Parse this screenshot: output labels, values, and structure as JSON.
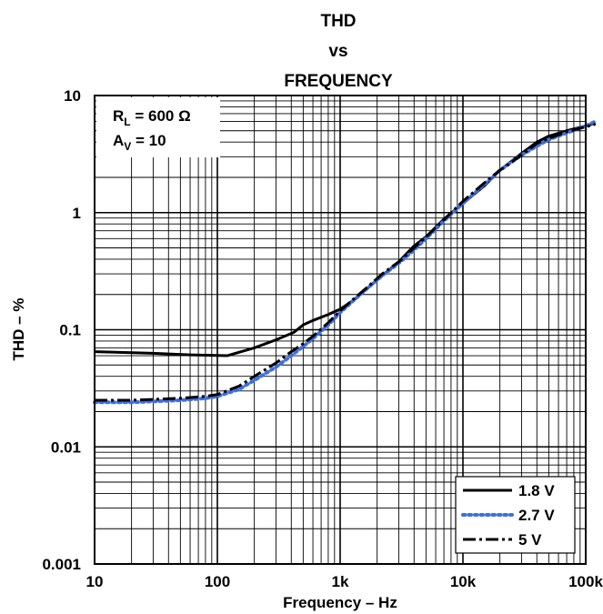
{
  "chart_data": {
    "type": "line",
    "title_lines": [
      "THD",
      "vs",
      "FREQUENCY"
    ],
    "xlabel": "Frequency – Hz",
    "ylabel": "THD – %",
    "x_scale": "log",
    "y_scale": "log",
    "xlim": [
      10,
      100000
    ],
    "ylim": [
      0.001,
      10
    ],
    "x_ticks": [
      {
        "value": 10,
        "label": "10"
      },
      {
        "value": 100,
        "label": "100"
      },
      {
        "value": 1000,
        "label": "1k"
      },
      {
        "value": 10000,
        "label": "10k"
      },
      {
        "value": 100000,
        "label": "100k"
      }
    ],
    "y_ticks": [
      {
        "value": 0.001,
        "label": "0.001"
      },
      {
        "value": 0.01,
        "label": "0.01"
      },
      {
        "value": 0.1,
        "label": "0.1"
      },
      {
        "value": 1,
        "label": "1"
      },
      {
        "value": 10,
        "label": "10"
      }
    ],
    "grid": true,
    "conditions": [
      {
        "main": "R",
        "sub": "L",
        "rest": " = 600 Ω"
      },
      {
        "main": "A",
        "sub": "V",
        "rest": " = 10"
      }
    ],
    "legend_position": "bottom-right",
    "series": [
      {
        "name": "1.8 V",
        "color": "#000000",
        "style": "solid",
        "x": [
          10,
          30,
          60,
          120,
          200,
          300,
          420,
          500,
          600,
          800,
          1000,
          1300,
          1700,
          2200,
          3000,
          3500,
          4000,
          5000,
          7000,
          10000,
          15000,
          20000,
          30000,
          40000,
          50000,
          70000,
          100000,
          120000
        ],
        "y": [
          0.065,
          0.063,
          0.061,
          0.06,
          0.07,
          0.082,
          0.095,
          0.11,
          0.12,
          0.135,
          0.15,
          0.18,
          0.23,
          0.29,
          0.38,
          0.45,
          0.52,
          0.62,
          0.88,
          1.2,
          1.7,
          2.3,
          3.2,
          4.0,
          4.5,
          5.0,
          5.5,
          5.8
        ]
      },
      {
        "name": "2.7 V",
        "color": "#3f6fe0",
        "style": "dotted",
        "x": [
          10,
          20,
          50,
          80,
          100,
          150,
          200,
          300,
          400,
          500,
          600,
          800,
          1000,
          1300,
          1700,
          2200,
          3000,
          4000,
          5000,
          7000,
          10000,
          15000,
          20000,
          30000,
          40000,
          50000,
          70000,
          100000,
          120000
        ],
        "y": [
          0.024,
          0.024,
          0.025,
          0.026,
          0.027,
          0.031,
          0.037,
          0.048,
          0.06,
          0.072,
          0.084,
          0.11,
          0.14,
          0.18,
          0.23,
          0.29,
          0.37,
          0.48,
          0.6,
          0.85,
          1.2,
          1.75,
          2.3,
          3.1,
          3.7,
          4.2,
          4.8,
          5.5,
          6.0
        ]
      },
      {
        "name": "5 V",
        "color": "#000000",
        "style": "dashed",
        "x": [
          10,
          20,
          50,
          80,
          100,
          150,
          200,
          300,
          400,
          500,
          600,
          800,
          1000,
          1300,
          1700,
          2200,
          3000,
          4000,
          5000,
          7000,
          10000,
          15000,
          20000,
          30000,
          35000,
          40000,
          50000,
          70000,
          100000,
          120000
        ],
        "y": [
          0.025,
          0.025,
          0.026,
          0.027,
          0.028,
          0.033,
          0.04,
          0.052,
          0.065,
          0.076,
          0.088,
          0.115,
          0.145,
          0.185,
          0.235,
          0.3,
          0.38,
          0.5,
          0.62,
          0.87,
          1.25,
          1.8,
          2.3,
          3.1,
          3.5,
          3.9,
          4.3,
          4.9,
          5.4,
          5.7
        ]
      }
    ]
  }
}
